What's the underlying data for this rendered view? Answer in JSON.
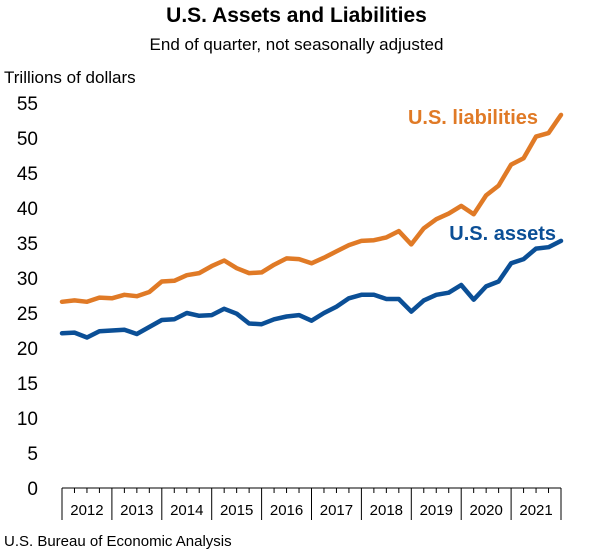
{
  "chart_data": {
    "type": "line",
    "title": "U.S. Assets and Liabilities",
    "subtitle": "End of quarter, not seasonally adjusted",
    "ylabel": "Trillions of dollars",
    "xlabel": "",
    "ylim": [
      0,
      55
    ],
    "yticks": [
      0,
      5,
      10,
      15,
      20,
      25,
      30,
      35,
      40,
      45,
      50,
      55
    ],
    "year_labels": [
      "2012",
      "2013",
      "2014",
      "2015",
      "2016",
      "2017",
      "2018",
      "2019",
      "2020",
      "2021"
    ],
    "grid": false,
    "legend": "inline labels at series ends",
    "x": [
      "2011Q4",
      "2012Q1",
      "2012Q2",
      "2012Q3",
      "2012Q4",
      "2013Q1",
      "2013Q2",
      "2013Q3",
      "2013Q4",
      "2014Q1",
      "2014Q2",
      "2014Q3",
      "2014Q4",
      "2015Q1",
      "2015Q2",
      "2015Q3",
      "2015Q4",
      "2016Q1",
      "2016Q2",
      "2016Q3",
      "2016Q4",
      "2017Q1",
      "2017Q2",
      "2017Q3",
      "2017Q4",
      "2018Q1",
      "2018Q2",
      "2018Q3",
      "2018Q4",
      "2019Q1",
      "2019Q2",
      "2019Q3",
      "2019Q4",
      "2020Q1",
      "2020Q2",
      "2020Q3",
      "2020Q4",
      "2021Q1",
      "2021Q2",
      "2021Q3"
    ],
    "series": [
      {
        "name": "U.S. liabilities",
        "color": "#e07a26",
        "values": [
          26.6,
          26.8,
          26.6,
          27.2,
          27.1,
          27.6,
          27.4,
          28.0,
          29.5,
          29.6,
          30.4,
          30.7,
          31.7,
          32.5,
          31.4,
          30.7,
          30.8,
          31.9,
          32.8,
          32.7,
          32.1,
          32.9,
          33.8,
          34.7,
          35.3,
          35.4,
          35.8,
          36.7,
          34.8,
          37.1,
          38.4,
          39.2,
          40.3,
          39.1,
          41.8,
          43.2,
          46.2,
          47.1,
          50.2,
          50.7
        ]
      },
      {
        "name": "U.S. assets",
        "color": "#0b4f96",
        "values": [
          22.1,
          22.2,
          21.5,
          22.4,
          22.5,
          22.6,
          22.0,
          23.0,
          24.0,
          24.1,
          25.0,
          24.6,
          24.7,
          25.6,
          24.9,
          23.5,
          23.4,
          24.1,
          24.5,
          24.7,
          23.9,
          25.0,
          25.9,
          27.1,
          27.6,
          27.6,
          27.0,
          27.0,
          25.2,
          26.8,
          27.6,
          27.9,
          29.0,
          26.9,
          28.8,
          29.5,
          32.1,
          32.7,
          34.2,
          34.4
        ]
      }
    ],
    "last_values": {
      "U.S. liabilities": 53.3,
      "U.S. assets": 35.3,
      "x": "2021Q4"
    }
  },
  "source": "U.S. Bureau of Economic Analysis"
}
